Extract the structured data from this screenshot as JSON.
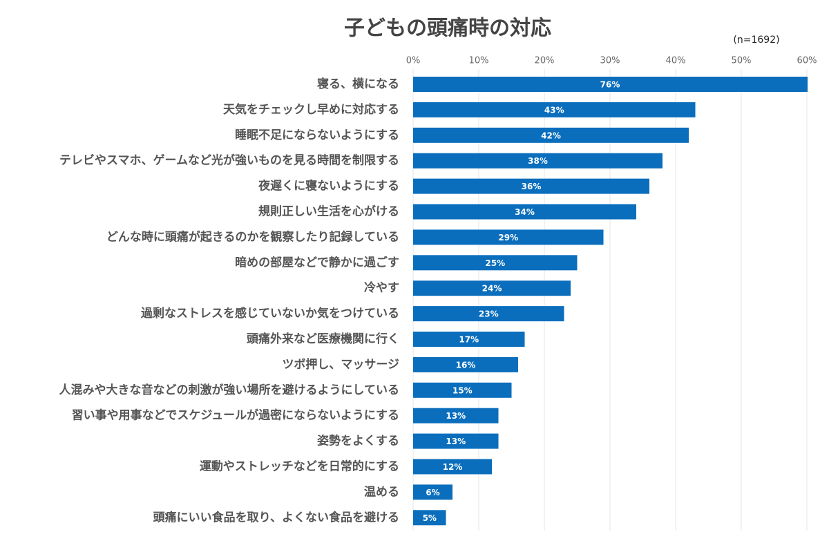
{
  "chart_data": {
    "type": "bar",
    "orientation": "horizontal",
    "title": "子どもの頭痛時の対応",
    "note": "(n=1692)",
    "categories": [
      "寝る、横になる",
      "天気をチェックし早めに対応する",
      "睡眠不足にならないようにする",
      "テレビやスマホ、ゲームなど光が強いものを見る時間を制限する",
      "夜遅くに寝ないようにする",
      "規則正しい生活を心がける",
      "どんな時に頭痛が起きるのかを観察したり記録している",
      "暗めの部屋などで静かに過ごす",
      "冷やす",
      "過剰なストレスを感じていないか気をつけている",
      "頭痛外来など医療機関に行く",
      "ツボ押し、マッサージ",
      "人混みや大きな音などの刺激が強い場所を避けるようにしている",
      "習い事や用事などでスケジュールが過密にならないようにする",
      "姿勢をよくする",
      "運動やストレッチなどを日常的にする",
      "温める",
      "頭痛にいい食品を取り、よくない食品を避ける"
    ],
    "values": [
      76,
      43,
      42,
      38,
      36,
      34,
      29,
      25,
      24,
      23,
      17,
      16,
      15,
      13,
      13,
      12,
      6,
      5
    ],
    "value_labels": [
      "76%",
      "43%",
      "42%",
      "38%",
      "36%",
      "34%",
      "29%",
      "25%",
      "24%",
      "23%",
      "17%",
      "16%",
      "15%",
      "13%",
      "13%",
      "12%",
      "6%",
      "5%"
    ],
    "color": "#0a6ebd",
    "xlim": [
      0,
      60
    ],
    "xticks": [
      {
        "value": 0,
        "label": "0%"
      },
      {
        "value": 10,
        "label": "10%"
      },
      {
        "value": 20,
        "label": "20%"
      },
      {
        "value": 30,
        "label": "30%"
      },
      {
        "value": 40,
        "label": "40%"
      },
      {
        "value": 50,
        "label": "50%"
      },
      {
        "value": 60,
        "label": "60%"
      }
    ],
    "grid": true
  }
}
